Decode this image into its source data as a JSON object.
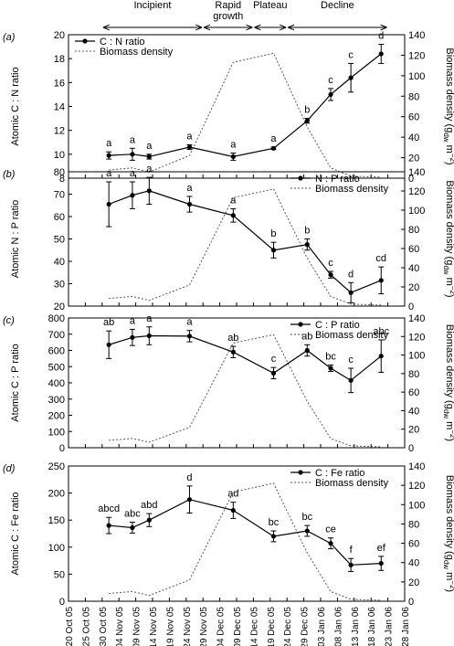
{
  "phases": [
    {
      "label": "Incipient",
      "from": "2005-10-30",
      "to": "2005-11-29"
    },
    {
      "label": "Rapid growth",
      "from": "2005-11-29",
      "to": "2005-12-14"
    },
    {
      "label": "Plateau",
      "from": "2005-12-14",
      "to": "2005-12-24"
    },
    {
      "label": "Decline",
      "from": "2005-12-24",
      "to": "2006-01-23"
    }
  ],
  "x_ticks": [
    "20 Oct 05",
    "25 Oct 05",
    "30 Oct 05",
    "04 Nov 05",
    "09 Nov 05",
    "14 Nov 05",
    "19 Nov 05",
    "24 Nov 05",
    "29 Nov 05",
    "04 Dec 05",
    "09 Dec 05",
    "14 Dec 05",
    "19 Dec 05",
    "24 Dec 05",
    "29 Dec 05",
    "03 Jan 06",
    "08 Jan 06",
    "13 Jan 06",
    "18 Jan 06",
    "23 Jan 06",
    "28 Jan 06"
  ],
  "x_tick_dates": [
    "2005-10-20",
    "2005-10-25",
    "2005-10-30",
    "2005-11-04",
    "2005-11-09",
    "2005-11-14",
    "2005-11-19",
    "2005-11-24",
    "2005-11-29",
    "2005-12-04",
    "2005-12-09",
    "2005-12-14",
    "2005-12-19",
    "2005-12-24",
    "2005-12-29",
    "2006-01-03",
    "2006-01-08",
    "2006-01-13",
    "2006-01-18",
    "2006-01-23",
    "2006-01-28"
  ],
  "right_axis_label": "Biomass density (g",
  "right_axis_label_sub": "dw",
  "right_axis_label_unit": " m",
  "right_axis_label_sup": "−2",
  "right_axis_label_close": ")",
  "colors": {
    "line": "#000000",
    "biomass": "#555555",
    "axis": "#000000"
  },
  "chart_data": [
    {
      "panel": "(a)",
      "type": "line",
      "ylabel": "Atomic C : N ratio",
      "ylim": [
        8,
        20
      ],
      "yticks": [
        8,
        10,
        12,
        14,
        16,
        18,
        20
      ],
      "y2lim": [
        0,
        140
      ],
      "y2ticks": [
        0,
        20,
        40,
        60,
        80,
        100,
        120,
        140
      ],
      "legend": [
        "C : N ratio",
        "Biomass density"
      ],
      "legend_position": "top-left",
      "series": [
        {
          "name": "C : N ratio",
          "x": [
            "2005-11-01",
            "2005-11-08",
            "2005-11-13",
            "2005-11-25",
            "2005-12-08",
            "2005-12-20",
            "2005-12-30",
            "2006-01-06",
            "2006-01-12",
            "2006-01-21"
          ],
          "values": [
            9.9,
            10.0,
            9.8,
            10.6,
            9.8,
            10.5,
            12.8,
            15.0,
            16.4,
            18.4
          ],
          "errors": [
            0.3,
            0.5,
            0.2,
            0.2,
            0.3,
            0.1,
            0.2,
            0.5,
            1.2,
            0.8
          ],
          "labels": [
            "a",
            "a",
            "a",
            "a",
            "a",
            "a",
            "b",
            "c",
            "c",
            "d"
          ]
        }
      ]
    },
    {
      "panel": "(b)",
      "type": "line",
      "ylabel": "Atomic N : P ratio",
      "ylim": [
        20,
        80
      ],
      "yticks": [
        20,
        30,
        40,
        50,
        60,
        70,
        80
      ],
      "y2lim": [
        0,
        140
      ],
      "y2ticks": [
        0,
        20,
        40,
        60,
        80,
        100,
        120,
        140
      ],
      "legend": [
        "N : P ratio",
        "Biomass density"
      ],
      "legend_position": "top-right",
      "series": [
        {
          "name": "N : P ratio",
          "x": [
            "2005-11-01",
            "2005-11-08",
            "2005-11-13",
            "2005-11-25",
            "2005-12-08",
            "2005-12-20",
            "2005-12-30",
            "2006-01-06",
            "2006-01-12",
            "2006-01-21"
          ],
          "values": [
            65.5,
            69.5,
            71.5,
            65.5,
            60.5,
            45,
            47.5,
            34,
            26,
            31.5
          ],
          "errors": [
            10,
            6,
            6,
            3.5,
            3,
            3.5,
            2.5,
            1.5,
            4.5,
            6
          ],
          "labels": [
            "a",
            "a",
            "a",
            "a",
            "a",
            "b",
            "b",
            "c",
            "d",
            "cd"
          ]
        }
      ]
    },
    {
      "panel": "(c)",
      "type": "line",
      "ylabel": "Atomic C : P ratio",
      "ylim": [
        0,
        800
      ],
      "yticks": [
        0,
        100,
        200,
        300,
        400,
        500,
        600,
        700,
        800
      ],
      "y2lim": [
        0,
        140
      ],
      "y2ticks": [
        0,
        20,
        40,
        60,
        80,
        100,
        120,
        140
      ],
      "legend": [
        "C : P ratio",
        "Biomass density"
      ],
      "legend_position": "top-right",
      "series": [
        {
          "name": "C : P ratio",
          "x": [
            "2005-11-01",
            "2005-11-08",
            "2005-11-13",
            "2005-11-25",
            "2005-12-08",
            "2005-12-20",
            "2005-12-30",
            "2006-01-06",
            "2006-01-12",
            "2006-01-21"
          ],
          "values": [
            635,
            680,
            690,
            688,
            590,
            460,
            600,
            490,
            415,
            565
          ],
          "errors": [
            85,
            50,
            55,
            35,
            35,
            35,
            35,
            20,
            75,
            100
          ],
          "labels": [
            "ab",
            "a",
            "a",
            "a",
            "ab",
            "c",
            "ab",
            "bc",
            "c",
            "abc"
          ]
        }
      ]
    },
    {
      "panel": "(d)",
      "type": "line",
      "ylabel": "Atomic C : Fe ratio",
      "ylim": [
        0,
        250
      ],
      "yticks": [
        0,
        50,
        100,
        150,
        200,
        250
      ],
      "y2lim": [
        0,
        140
      ],
      "y2ticks": [
        0,
        20,
        40,
        60,
        80,
        100,
        120,
        140
      ],
      "legend": [
        "C : Fe ratio",
        "Biomass density"
      ],
      "legend_position": "top-right",
      "series": [
        {
          "name": "C : Fe ratio",
          "x": [
            "2005-11-01",
            "2005-11-08",
            "2005-11-13",
            "2005-11-25",
            "2005-12-08",
            "2005-12-20",
            "2005-12-30",
            "2006-01-06",
            "2006-01-12",
            "2006-01-21"
          ],
          "values": [
            140,
            136,
            150,
            188,
            168,
            120,
            130,
            107,
            67,
            70
          ],
          "errors": [
            15,
            10,
            12,
            25,
            15,
            10,
            10,
            10,
            12,
            13
          ],
          "labels": [
            "abcd",
            "abc",
            "abd",
            "d",
            "ad",
            "bc",
            "bc",
            "ce",
            "f",
            "ef"
          ]
        }
      ]
    }
  ],
  "biomass_density": {
    "name": "Biomass density",
    "x": [
      "2005-11-01",
      "2005-11-08",
      "2005-11-13",
      "2005-11-25",
      "2005-12-08",
      "2005-12-20",
      "2005-12-30",
      "2006-01-06",
      "2006-01-12",
      "2006-01-21"
    ],
    "values": [
      8,
      10,
      6,
      22,
      113,
      122,
      50,
      10,
      2,
      1
    ]
  }
}
